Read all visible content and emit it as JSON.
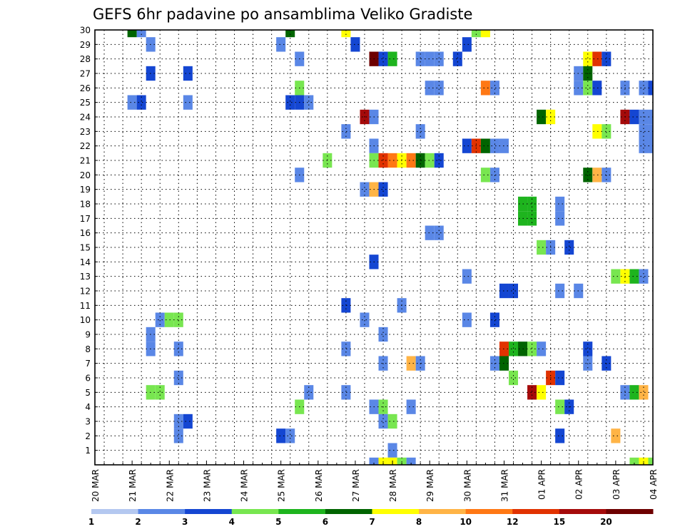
{
  "chart_data": {
    "type": "heatmap",
    "title": "GEFS 6hr padavine po ansamblima Veliko Gradiste",
    "xlabel": "",
    "ylabel": "",
    "x_tick_labels": [
      "20 MAR",
      "21 MAR",
      "22 MAR",
      "23 MAR",
      "24 MAR",
      "25 MAR",
      "26 MAR",
      "27 MAR",
      "28 MAR",
      "29 MAR",
      "30 MAR",
      "31 MAR",
      "01 APR",
      "02 APR",
      "03 APR",
      "04 APR"
    ],
    "y_tick_labels": [
      "1",
      "2",
      "3",
      "4",
      "5",
      "6",
      "7",
      "8",
      "9",
      "10",
      "11",
      "12",
      "13",
      "14",
      "15",
      "16",
      "17",
      "18",
      "19",
      "20",
      "21",
      "22",
      "23",
      "24",
      "25",
      "26",
      "27",
      "28",
      "29",
      "30"
    ],
    "x_unit": "6-hour step from 20 MAR 00 (4 steps per day)",
    "xlim": [
      0,
      60
    ],
    "ylim": [
      0,
      30
    ],
    "grid": true,
    "legend": {
      "placement": "bottom",
      "labels": [
        "1",
        "2",
        "3",
        "4",
        "5",
        "6",
        "7",
        "8",
        "10",
        "12",
        "15",
        "20"
      ],
      "colors": [
        "#b4c8f0",
        "#5a87e6",
        "#1446d2",
        "#78e650",
        "#1eb41e",
        "#006400",
        "#ffff00",
        "#ffb446",
        "#ff7814",
        "#e13200",
        "#a50a0a",
        "#6e0000"
      ]
    },
    "cells": [
      [
        4,
        30,
        5
      ],
      [
        5,
        30,
        1
      ],
      [
        21,
        30,
        5
      ],
      [
        27,
        30,
        6
      ],
      [
        41,
        30,
        3
      ],
      [
        42,
        30,
        6
      ],
      [
        6,
        29,
        1
      ],
      [
        20,
        29,
        1
      ],
      [
        28,
        29,
        2
      ],
      [
        40,
        29,
        2
      ],
      [
        22,
        28,
        1
      ],
      [
        30,
        28,
        11
      ],
      [
        31,
        28,
        2
      ],
      [
        32,
        28,
        4
      ],
      [
        35,
        28,
        1
      ],
      [
        36,
        28,
        1
      ],
      [
        37,
        28,
        1
      ],
      [
        39,
        28,
        2
      ],
      [
        53,
        28,
        6
      ],
      [
        54,
        28,
        9
      ],
      [
        55,
        28,
        2
      ],
      [
        6,
        27,
        2
      ],
      [
        10,
        27,
        2
      ],
      [
        52,
        27,
        1
      ],
      [
        53,
        27,
        5
      ],
      [
        22,
        26,
        3
      ],
      [
        36,
        26,
        1
      ],
      [
        37,
        26,
        1
      ],
      [
        42,
        26,
        8
      ],
      [
        43,
        26,
        1
      ],
      [
        52,
        26,
        1
      ],
      [
        53,
        26,
        3
      ],
      [
        54,
        26,
        2
      ],
      [
        57,
        26,
        1
      ],
      [
        59,
        26,
        1
      ],
      [
        60,
        26,
        2
      ],
      [
        4,
        25,
        1
      ],
      [
        5,
        25,
        2
      ],
      [
        10,
        25,
        1
      ],
      [
        21,
        25,
        2
      ],
      [
        22,
        25,
        2
      ],
      [
        23,
        25,
        1
      ],
      [
        29,
        24,
        10
      ],
      [
        30,
        24,
        1
      ],
      [
        48,
        24,
        5
      ],
      [
        49,
        24,
        6
      ],
      [
        57,
        24,
        10
      ],
      [
        58,
        24,
        2
      ],
      [
        59,
        24,
        1
      ],
      [
        60,
        24,
        1
      ],
      [
        27,
        23,
        1
      ],
      [
        35,
        23,
        1
      ],
      [
        54,
        23,
        6
      ],
      [
        55,
        23,
        3
      ],
      [
        59,
        23,
        1
      ],
      [
        60,
        23,
        1
      ],
      [
        30,
        22,
        1
      ],
      [
        40,
        22,
        2
      ],
      [
        41,
        22,
        9
      ],
      [
        42,
        22,
        5
      ],
      [
        43,
        22,
        1
      ],
      [
        44,
        22,
        1
      ],
      [
        59,
        22,
        1
      ],
      [
        60,
        22,
        1
      ],
      [
        25,
        21,
        3
      ],
      [
        30,
        21,
        3
      ],
      [
        31,
        21,
        9
      ],
      [
        32,
        21,
        8
      ],
      [
        33,
        21,
        6
      ],
      [
        34,
        21,
        8
      ],
      [
        35,
        21,
        5
      ],
      [
        36,
        21,
        3
      ],
      [
        37,
        21,
        2
      ],
      [
        22,
        20,
        1
      ],
      [
        42,
        20,
        3
      ],
      [
        43,
        20,
        1
      ],
      [
        53,
        20,
        5
      ],
      [
        54,
        20,
        7
      ],
      [
        55,
        20,
        1
      ],
      [
        29,
        19,
        1
      ],
      [
        30,
        19,
        7
      ],
      [
        31,
        19,
        2
      ],
      [
        46,
        18,
        4
      ],
      [
        47,
        18,
        4
      ],
      [
        50,
        18,
        1
      ],
      [
        46,
        17,
        4
      ],
      [
        47,
        17,
        4
      ],
      [
        50,
        17,
        1
      ],
      [
        36,
        16,
        1
      ],
      [
        37,
        16,
        1
      ],
      [
        48,
        15,
        3
      ],
      [
        49,
        15,
        1
      ],
      [
        51,
        15,
        2
      ],
      [
        30,
        14,
        2
      ],
      [
        40,
        13,
        1
      ],
      [
        56,
        13,
        3
      ],
      [
        57,
        13,
        6
      ],
      [
        58,
        13,
        4
      ],
      [
        59,
        13,
        1
      ],
      [
        44,
        12,
        2
      ],
      [
        45,
        12,
        2
      ],
      [
        50,
        12,
        1
      ],
      [
        52,
        12,
        1
      ],
      [
        27,
        11,
        2
      ],
      [
        33,
        11,
        1
      ],
      [
        7,
        10,
        1
      ],
      [
        8,
        10,
        3
      ],
      [
        9,
        10,
        3
      ],
      [
        29,
        10,
        1
      ],
      [
        40,
        10,
        1
      ],
      [
        43,
        10,
        2
      ],
      [
        6,
        9,
        1
      ],
      [
        31,
        9,
        1
      ],
      [
        6,
        8,
        1
      ],
      [
        9,
        8,
        1
      ],
      [
        27,
        8,
        1
      ],
      [
        44,
        8,
        9
      ],
      [
        45,
        8,
        4
      ],
      [
        46,
        8,
        5
      ],
      [
        47,
        8,
        3
      ],
      [
        48,
        8,
        1
      ],
      [
        53,
        8,
        2
      ],
      [
        31,
        7,
        1
      ],
      [
        34,
        7,
        7
      ],
      [
        35,
        7,
        1
      ],
      [
        43,
        7,
        1
      ],
      [
        44,
        7,
        5
      ],
      [
        53,
        7,
        1
      ],
      [
        55,
        7,
        2
      ],
      [
        9,
        6,
        1
      ],
      [
        45,
        6,
        3
      ],
      [
        49,
        6,
        9
      ],
      [
        50,
        6,
        2
      ],
      [
        6,
        5,
        3
      ],
      [
        7,
        5,
        3
      ],
      [
        23,
        5,
        1
      ],
      [
        27,
        5,
        1
      ],
      [
        47,
        5,
        10
      ],
      [
        48,
        5,
        6
      ],
      [
        57,
        5,
        1
      ],
      [
        58,
        5,
        4
      ],
      [
        59,
        5,
        7
      ],
      [
        22,
        4,
        3
      ],
      [
        30,
        4,
        1
      ],
      [
        31,
        4,
        3
      ],
      [
        34,
        4,
        1
      ],
      [
        50,
        4,
        3
      ],
      [
        51,
        4,
        2
      ],
      [
        9,
        3,
        1
      ],
      [
        10,
        3,
        2
      ],
      [
        31,
        3,
        1
      ],
      [
        32,
        3,
        3
      ],
      [
        9,
        2,
        1
      ],
      [
        20,
        2,
        2
      ],
      [
        21,
        2,
        1
      ],
      [
        50,
        2,
        2
      ],
      [
        56,
        2,
        7
      ],
      [
        32,
        1,
        1
      ],
      [
        30,
        0,
        1
      ],
      [
        31,
        0,
        6
      ],
      [
        32,
        0,
        6
      ],
      [
        33,
        0,
        3
      ],
      [
        34,
        0,
        1
      ],
      [
        58,
        0,
        3
      ],
      [
        59,
        0,
        6
      ],
      [
        60,
        0,
        3
      ]
    ]
  }
}
